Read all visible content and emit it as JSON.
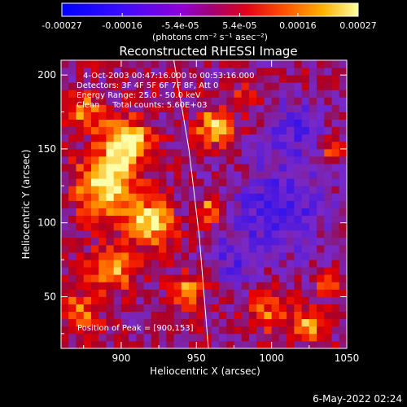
{
  "chart_data": {
    "type": "heatmap",
    "title": "Reconstructed RHESSI Image",
    "xlabel": "Heliocentric X (arcsec)",
    "ylabel": "Heliocentric Y (arcsec)",
    "xlim": [
      860,
      1050
    ],
    "ylim": [
      15,
      210
    ],
    "x_ticks": [
      900,
      950,
      1000,
      1050
    ],
    "y_ticks": [
      50,
      100,
      150,
      200
    ],
    "colorbar": {
      "ticks": [
        "-0.00027",
        "-0.00016",
        "-5.4e-05",
        "5.4e-05",
        "0.00016",
        "0.00027"
      ],
      "unit": "(photons cm⁻² s⁻¹ asec⁻²)",
      "min": -0.00027,
      "max": 0.00027
    },
    "annotations": [
      "4-Oct-2003 00:47:16.000 to 00:53:16.000",
      "Detectors: 3F 4F 5F 6F 7F 8F, Att 0",
      "Energy Range: 25.0 - 50.0 keV",
      "Clean     Total counts: 5.60E+03"
    ],
    "peak_text": "Position of Peak = [900,153]",
    "peak": [
      900,
      153
    ],
    "limb_curve": [
      [
        935,
        210
      ],
      [
        945,
        150
      ],
      [
        952,
        90
      ],
      [
        958,
        15
      ]
    ],
    "grid_cols": 38,
    "grid_rows": 39,
    "bright_sources": [
      {
        "x": 890,
        "y": 125,
        "amp": 1.0,
        "sigma": 14
      },
      {
        "x": 903,
        "y": 155,
        "amp": 1.0,
        "sigma": 11
      },
      {
        "x": 920,
        "y": 100,
        "amp": 0.95,
        "sigma": 10
      },
      {
        "x": 875,
        "y": 175,
        "amp": 0.7,
        "sigma": 8
      },
      {
        "x": 895,
        "y": 70,
        "amp": 0.75,
        "sigma": 11
      },
      {
        "x": 962,
        "y": 165,
        "amp": 0.75,
        "sigma": 9
      },
      {
        "x": 960,
        "y": 110,
        "amp": 0.65,
        "sigma": 7
      },
      {
        "x": 872,
        "y": 40,
        "amp": 0.6,
        "sigma": 9
      },
      {
        "x": 945,
        "y": 55,
        "amp": 0.6,
        "sigma": 8
      },
      {
        "x": 1000,
        "y": 40,
        "amp": 0.5,
        "sigma": 10
      },
      {
        "x": 1040,
        "y": 60,
        "amp": 0.6,
        "sigma": 6
      },
      {
        "x": 1040,
        "y": 150,
        "amp": 0.55,
        "sigma": 5
      },
      {
        "x": 1025,
        "y": 30,
        "amp": 0.65,
        "sigma": 7
      },
      {
        "x": 985,
        "y": 185,
        "amp": 0.4,
        "sigma": 7
      }
    ],
    "dark_regions": [
      {
        "x": 1005,
        "y": 110,
        "amp": -0.55,
        "sigma": 22
      },
      {
        "x": 975,
        "y": 75,
        "amp": -0.4,
        "sigma": 12
      },
      {
        "x": 1015,
        "y": 165,
        "amp": -0.45,
        "sigma": 14
      }
    ]
  },
  "footer": {
    "date": "6-May-2022 02:24"
  }
}
